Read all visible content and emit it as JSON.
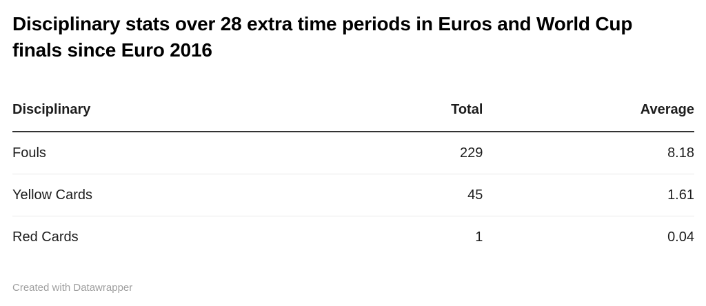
{
  "title": "Disciplinary stats over 28 extra time periods in Euros and World Cup finals since Euro 2016",
  "table": {
    "columns": [
      "Disciplinary",
      "Total",
      "Average"
    ],
    "rows": [
      {
        "label": "Fouls",
        "total": "229",
        "average": "8.18"
      },
      {
        "label": "Yellow Cards",
        "total": "45",
        "average": "1.61"
      },
      {
        "label": "Red Cards",
        "total": "1",
        "average": "0.04"
      }
    ]
  },
  "footer": {
    "credit": "Created with Datawrapper"
  },
  "colors": {
    "title": "#000000",
    "body_text": "#1d1d1d",
    "header_border": "#333333",
    "row_border": "#e8e8e8",
    "credit_text": "#9e9e9e",
    "background": "#ffffff"
  },
  "chart_data": {
    "type": "table",
    "title": "Disciplinary stats over 28 extra time periods in Euros and World Cup finals since Euro 2016",
    "columns": [
      "Disciplinary",
      "Total",
      "Average"
    ],
    "rows": [
      [
        "Fouls",
        229,
        8.18
      ],
      [
        "Yellow Cards",
        45,
        1.61
      ],
      [
        "Red Cards",
        1,
        0.04
      ]
    ],
    "extra_time_periods": 28,
    "credit": "Created with Datawrapper"
  }
}
